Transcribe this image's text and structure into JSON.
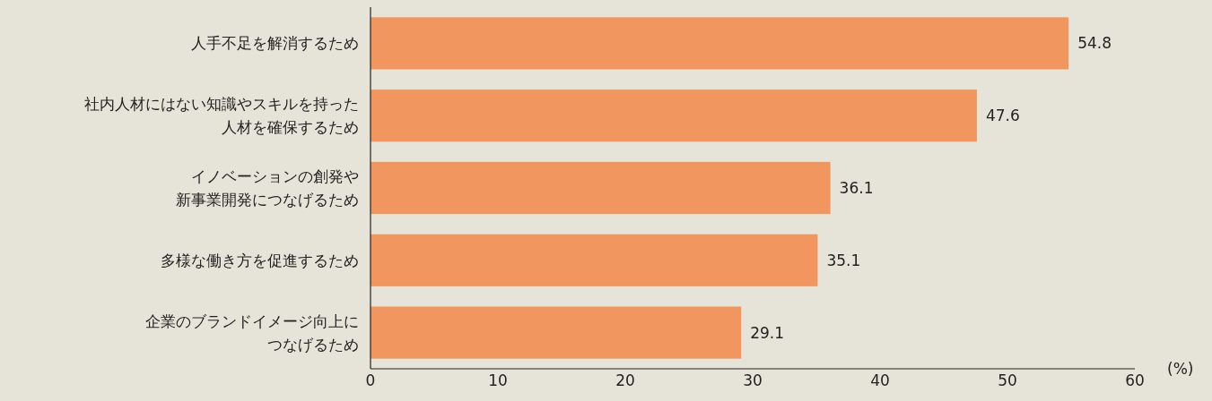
{
  "chart_data": {
    "type": "bar",
    "orientation": "horizontal",
    "categories": [
      "人手不足を解消するため",
      "社内人材にはない知識やスキルを持った人材を確保するため",
      "イノベーションの創発や新事業開発につなげるため",
      "多様な働き方を促進するため",
      "企業のブランドイメージ向上につなげるため"
    ],
    "values": [
      54.8,
      47.6,
      36.1,
      35.1,
      29.1
    ],
    "color": "#f29660",
    "xlim": [
      0,
      60
    ],
    "xticks": [
      0,
      10,
      20,
      30,
      40,
      50,
      60
    ],
    "xlabel": "(%)",
    "data_labels": true,
    "grid": false
  }
}
